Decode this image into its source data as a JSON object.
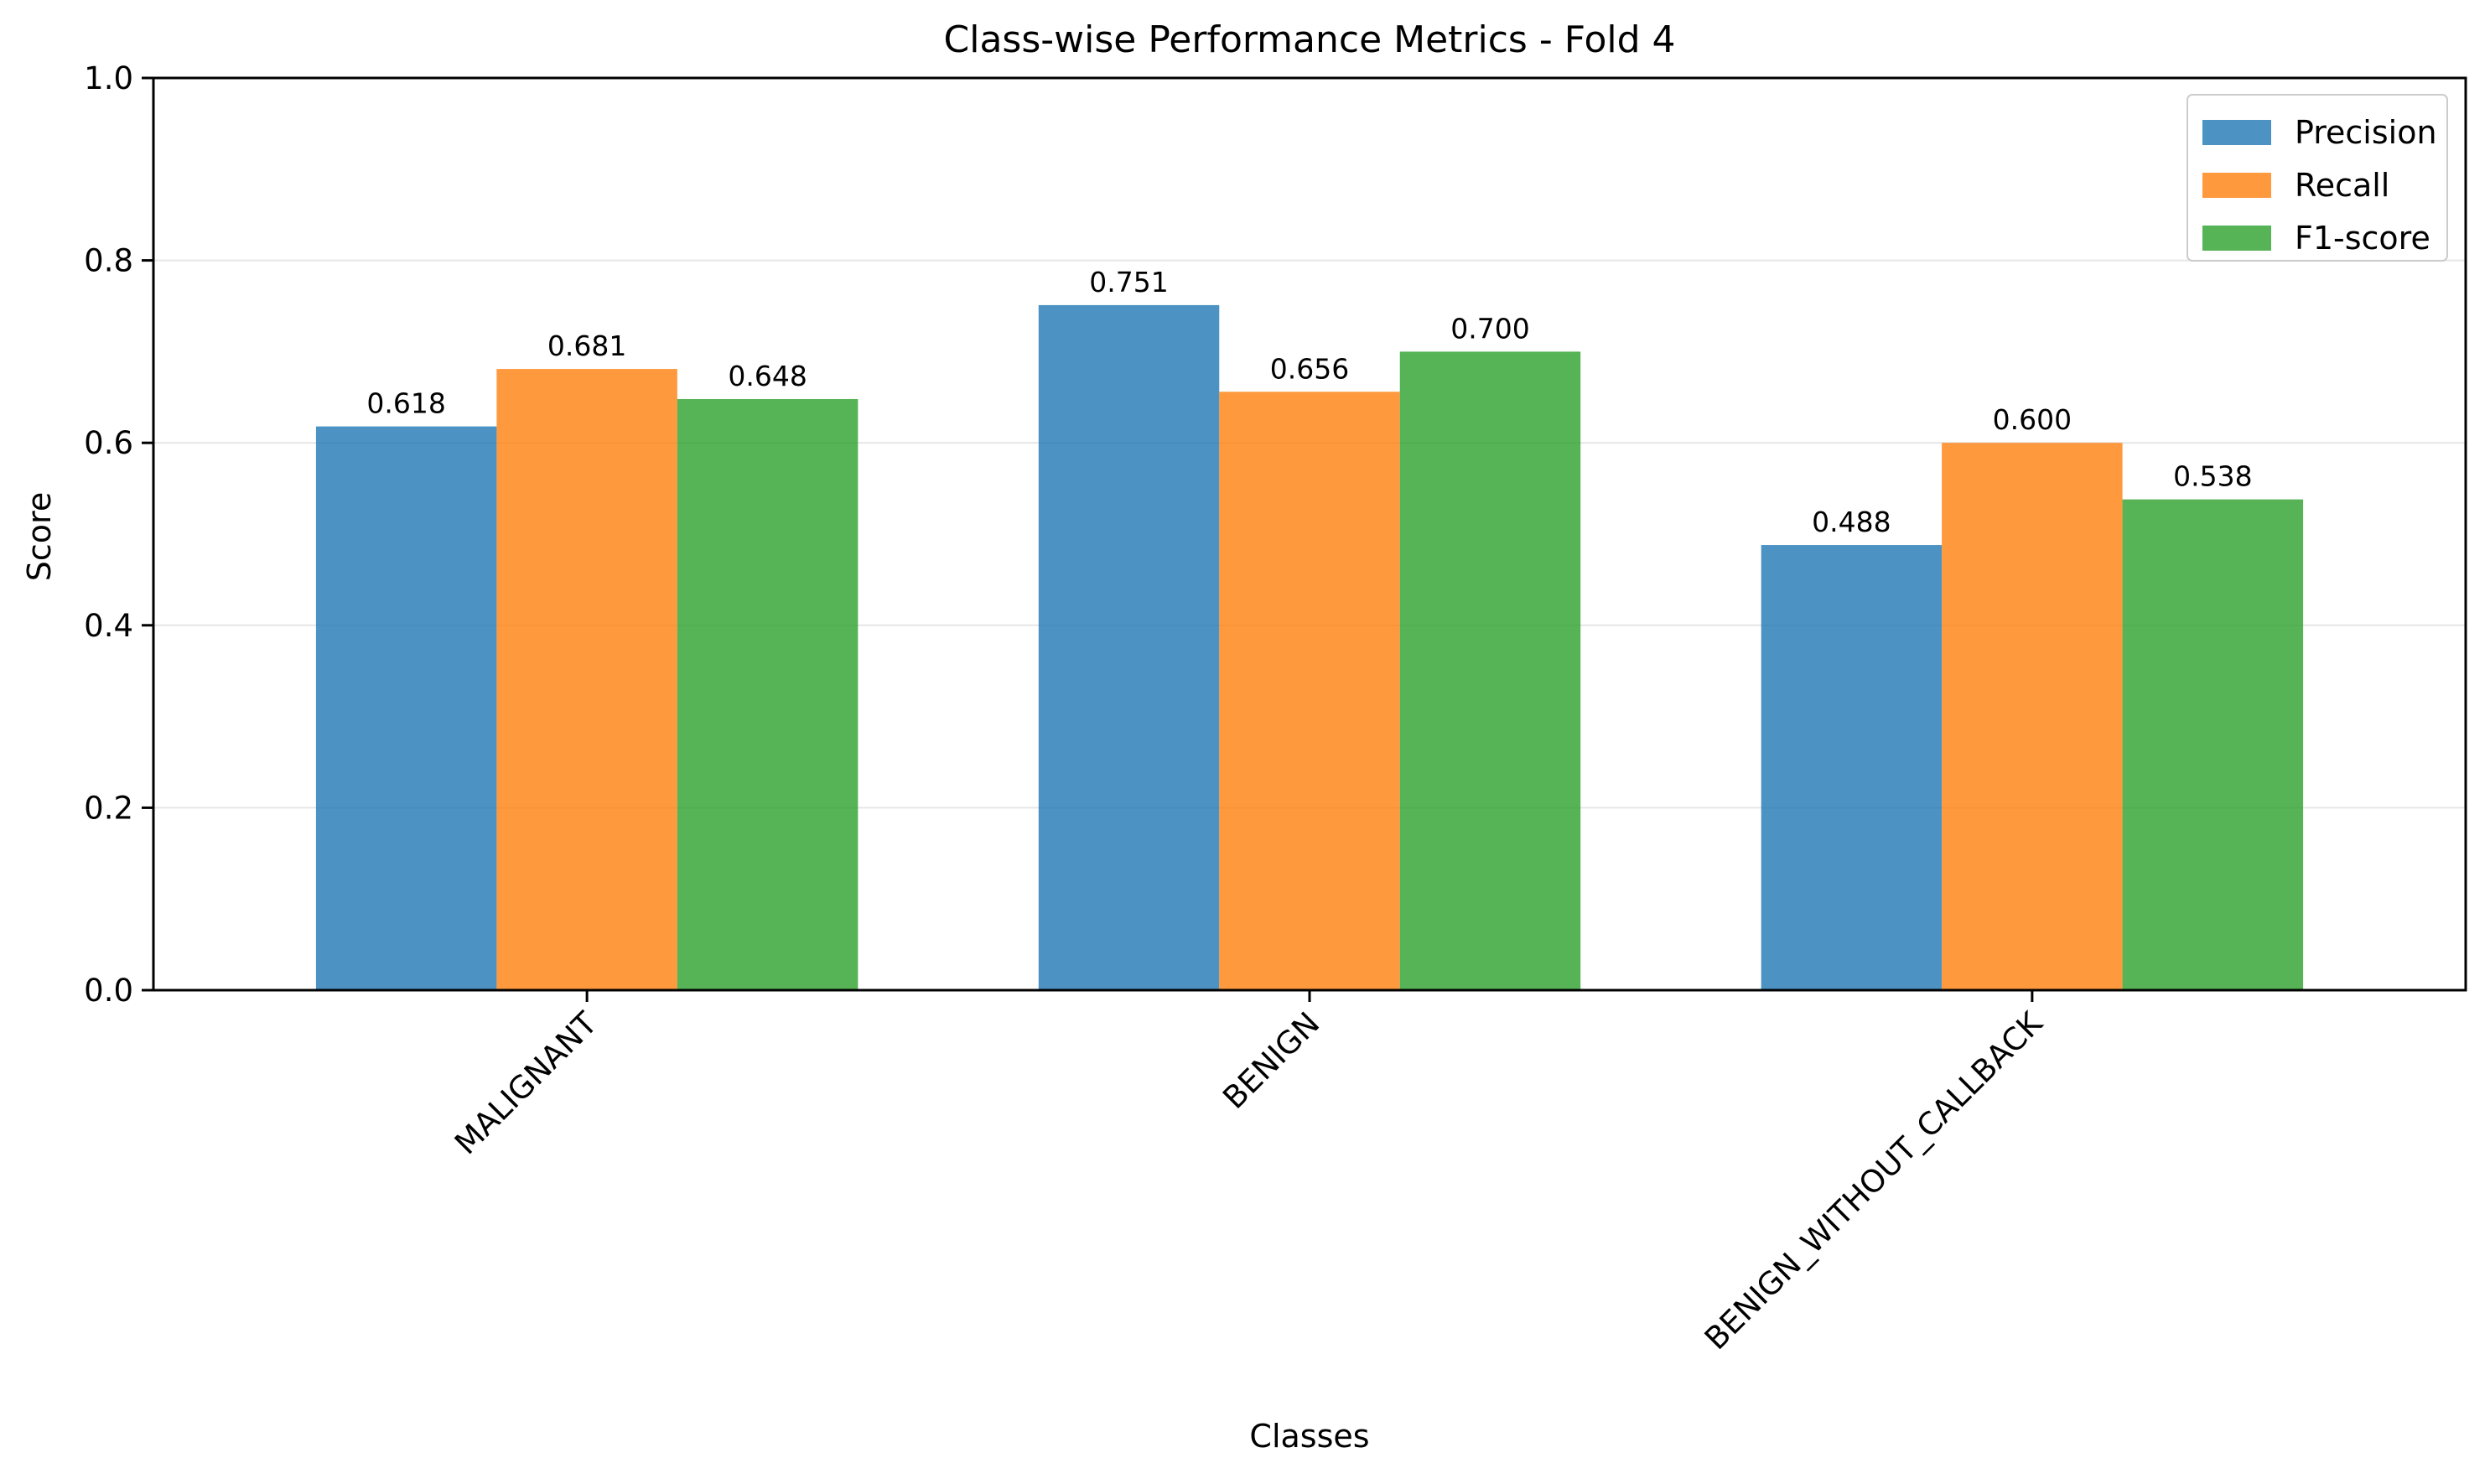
{
  "chart_data": {
    "type": "bar",
    "title": "Class-wise Performance Metrics - Fold 4",
    "xlabel": "Classes",
    "ylabel": "Score",
    "ylim": [
      0,
      1.0
    ],
    "yticks": [
      "0.0",
      "0.2",
      "0.4",
      "0.6",
      "0.8",
      "1.0"
    ],
    "ytick_values": [
      0,
      0.2,
      0.4,
      0.6,
      0.8,
      1.0
    ],
    "categories": [
      "MALIGNANT",
      "BENIGN",
      "BENIGN_WITHOUT_CALLBACK"
    ],
    "series": [
      {
        "name": "Precision",
        "color": "#1f77b4",
        "values": [
          0.618,
          0.751,
          0.488
        ],
        "labels": [
          "0.618",
          "0.751",
          "0.488"
        ]
      },
      {
        "name": "Recall",
        "color": "#ff7f0e",
        "values": [
          0.681,
          0.656,
          0.6
        ],
        "labels": [
          "0.681",
          "0.656",
          "0.600"
        ]
      },
      {
        "name": "F1-score",
        "color": "#2ca02c",
        "values": [
          0.648,
          0.7,
          0.538
        ],
        "labels": [
          "0.648",
          "0.700",
          "0.538"
        ]
      }
    ],
    "grid": "horizontal",
    "legend_position": "top-right"
  }
}
